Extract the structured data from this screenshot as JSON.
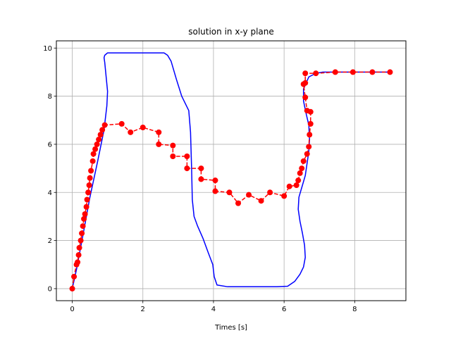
{
  "chart_data": {
    "type": "line",
    "title": "solution in x-y plane",
    "xlabel": "Times [s]",
    "ylabel": "",
    "xlim": [
      -0.45,
      9.45
    ],
    "ylim": [
      -0.5,
      10.3
    ],
    "xticks": [
      0,
      2,
      4,
      6,
      8
    ],
    "yticks": [
      0,
      2,
      4,
      6,
      8,
      10
    ],
    "grid": true,
    "series": [
      {
        "style": "solid-line",
        "color": "#0000ff",
        "x": [
          0,
          0.12,
          0.3,
          0.5,
          0.72,
          0.9,
          0.98,
          1.0,
          0.96,
          0.92,
          0.9,
          0.92,
          1.0,
          1.2,
          2.0,
          2.6,
          2.7,
          2.8,
          2.95,
          3.1,
          3.3,
          3.35,
          3.38,
          3.4,
          3.45,
          3.55,
          3.7,
          3.85,
          3.98,
          4.02,
          4.1,
          4.4,
          5.0,
          5.8,
          6.1,
          6.3,
          6.45,
          6.55,
          6.6,
          6.58,
          6.52,
          6.45,
          6.4,
          6.42,
          6.52,
          6.6,
          6.65,
          6.7,
          6.72,
          6.7,
          6.62,
          6.55,
          6.55,
          6.7,
          6.9,
          7.1,
          7.5,
          8.0,
          8.5,
          9.0
        ],
        "y": [
          0,
          0.8,
          2.2,
          3.8,
          5.3,
          6.6,
          7.6,
          8.2,
          8.8,
          9.4,
          9.6,
          9.7,
          9.8,
          9.8,
          9.8,
          9.8,
          9.7,
          9.45,
          8.7,
          8.0,
          7.4,
          6.5,
          5.0,
          3.7,
          3.0,
          2.6,
          2.1,
          1.5,
          1.0,
          0.5,
          0.15,
          0.08,
          0.08,
          0.08,
          0.1,
          0.3,
          0.6,
          0.9,
          1.3,
          1.8,
          2.3,
          2.8,
          3.3,
          3.8,
          4.3,
          4.7,
          5.2,
          5.7,
          6.2,
          6.8,
          7.3,
          7.8,
          8.3,
          8.8,
          8.95,
          9.0,
          9.0,
          9.0,
          9.0,
          9.0
        ]
      },
      {
        "style": "dashed-markers",
        "color": "#ff0000",
        "x": [
          0,
          0.05,
          0.12,
          0.15,
          0.18,
          0.2,
          0.24,
          0.27,
          0.3,
          0.33,
          0.36,
          0.4,
          0.42,
          0.45,
          0.48,
          0.5,
          0.53,
          0.58,
          0.6,
          0.65,
          0.7,
          0.75,
          0.8,
          0.85,
          0.92,
          1.4,
          1.65,
          2.0,
          2.45,
          2.45,
          2.85,
          2.85,
          3.25,
          3.25,
          3.65,
          3.65,
          4.05,
          4.05,
          4.45,
          4.7,
          5.0,
          5.35,
          5.6,
          6.0,
          6.15,
          6.35,
          6.4,
          6.45,
          6.5,
          6.55,
          6.65,
          6.7,
          6.72,
          6.75,
          6.75,
          6.65,
          6.6,
          6.55,
          6.6,
          6.6,
          6.9,
          7.45,
          7.95,
          8.5,
          9.0
        ],
        "y": [
          0,
          0.5,
          1.0,
          1.1,
          1.4,
          1.7,
          2.0,
          2.3,
          2.6,
          2.9,
          3.1,
          3.4,
          3.7,
          4.0,
          4.3,
          4.6,
          4.9,
          5.3,
          5.6,
          5.8,
          6.0,
          6.2,
          6.4,
          6.6,
          6.8,
          6.85,
          6.5,
          6.7,
          6.5,
          6.0,
          5.95,
          5.5,
          5.5,
          5.0,
          5.0,
          4.55,
          4.5,
          4.05,
          4.0,
          3.55,
          3.9,
          3.65,
          4.0,
          3.85,
          4.25,
          4.3,
          4.5,
          4.8,
          5.0,
          5.3,
          5.6,
          5.9,
          6.4,
          6.85,
          7.35,
          7.4,
          7.95,
          8.5,
          8.55,
          8.95,
          8.95,
          9.0,
          9.0,
          9.0,
          9.0
        ]
      }
    ]
  }
}
